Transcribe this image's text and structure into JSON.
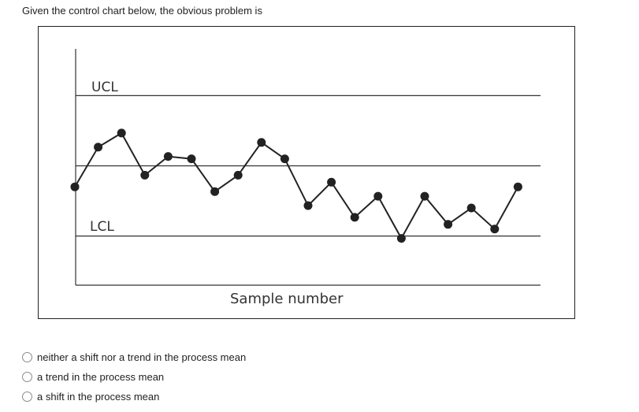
{
  "question": {
    "text": "Given the control chart below, the obvious problem is"
  },
  "chart_data": {
    "type": "line",
    "labels": {
      "ucl": "UCL",
      "lcl": "LCL",
      "xlabel": "Sample number"
    },
    "control_levels": {
      "ucl": 3.0,
      "center": 0.0,
      "lcl": -3.0
    },
    "ylim": [
      -5.1,
      5.0
    ],
    "values": [
      -0.9,
      0.8,
      1.4,
      -0.4,
      0.4,
      0.3,
      -1.1,
      -0.4,
      1.0,
      0.3,
      -1.7,
      -0.7,
      -2.2,
      -1.3,
      -3.1,
      -1.3,
      -2.5,
      -1.8,
      -2.7,
      -0.9
    ],
    "grid": false,
    "line_color": "#222222"
  },
  "options": [
    {
      "label": "neither a shift nor a trend in the process mean"
    },
    {
      "label": "a trend in the process mean"
    },
    {
      "label": "a shift in the process mean"
    }
  ]
}
